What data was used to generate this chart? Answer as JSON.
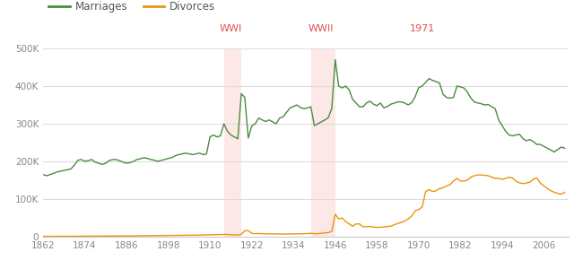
{
  "marriage_data": {
    "years": [
      1862,
      1863,
      1864,
      1865,
      1866,
      1867,
      1868,
      1869,
      1870,
      1871,
      1872,
      1873,
      1874,
      1875,
      1876,
      1877,
      1878,
      1879,
      1880,
      1881,
      1882,
      1883,
      1884,
      1885,
      1886,
      1887,
      1888,
      1889,
      1890,
      1891,
      1892,
      1893,
      1894,
      1895,
      1896,
      1897,
      1898,
      1899,
      1900,
      1901,
      1902,
      1903,
      1904,
      1905,
      1906,
      1907,
      1908,
      1909,
      1910,
      1911,
      1912,
      1913,
      1914,
      1915,
      1916,
      1917,
      1918,
      1919,
      1920,
      1921,
      1922,
      1923,
      1924,
      1925,
      1926,
      1927,
      1928,
      1929,
      1930,
      1931,
      1932,
      1933,
      1934,
      1935,
      1936,
      1937,
      1938,
      1939,
      1940,
      1941,
      1942,
      1943,
      1944,
      1945,
      1946,
      1947,
      1948,
      1949,
      1950,
      1951,
      1952,
      1953,
      1954,
      1955,
      1956,
      1957,
      1958,
      1959,
      1960,
      1961,
      1962,
      1963,
      1964,
      1965,
      1966,
      1967,
      1968,
      1969,
      1970,
      1971,
      1972,
      1973,
      1974,
      1975,
      1976,
      1977,
      1978,
      1979,
      1980,
      1981,
      1982,
      1983,
      1984,
      1985,
      1986,
      1987,
      1988,
      1989,
      1990,
      1991,
      1992,
      1993,
      1994,
      1995,
      1996,
      1997,
      1998,
      1999,
      2000,
      2001,
      2002,
      2003,
      2004,
      2005,
      2006,
      2007,
      2008,
      2009,
      2010,
      2011,
      2012
    ],
    "values": [
      165000,
      162000,
      165000,
      168000,
      172000,
      174000,
      176000,
      178000,
      180000,
      190000,
      203000,
      205000,
      200000,
      202000,
      205000,
      198000,
      195000,
      192000,
      195000,
      202000,
      205000,
      205000,
      202000,
      198000,
      195000,
      197000,
      200000,
      205000,
      207000,
      210000,
      208000,
      205000,
      203000,
      200000,
      203000,
      205000,
      208000,
      210000,
      215000,
      218000,
      220000,
      222000,
      220000,
      218000,
      220000,
      222000,
      218000,
      220000,
      265000,
      270000,
      265000,
      268000,
      300000,
      280000,
      270000,
      265000,
      260000,
      380000,
      370000,
      262000,
      294000,
      300000,
      315000,
      310000,
      306000,
      310000,
      305000,
      300000,
      315000,
      318000,
      330000,
      342000,
      346000,
      350000,
      343000,
      340000,
      342000,
      345000,
      295000,
      300000,
      305000,
      310000,
      316000,
      340000,
      470000,
      400000,
      395000,
      400000,
      390000,
      365000,
      355000,
      345000,
      345000,
      355000,
      360000,
      352000,
      348000,
      355000,
      342000,
      346000,
      352000,
      355000,
      358000,
      358000,
      355000,
      350000,
      356000,
      372000,
      396000,
      400000,
      410000,
      420000,
      415000,
      412000,
      408000,
      378000,
      370000,
      368000,
      370000,
      400000,
      398000,
      395000,
      384000,
      368000,
      358000,
      355000,
      353000,
      350000,
      351000,
      345000,
      340000,
      310000,
      295000,
      280000,
      270000,
      268000,
      270000,
      272000,
      260000,
      255000,
      258000,
      252000,
      245000,
      245000,
      240000,
      235000,
      230000,
      225000,
      232000,
      238000,
      235000
    ]
  },
  "divorce_data": {
    "years": [
      1862,
      1863,
      1864,
      1865,
      1866,
      1867,
      1868,
      1869,
      1870,
      1871,
      1872,
      1873,
      1874,
      1875,
      1876,
      1877,
      1878,
      1879,
      1880,
      1881,
      1882,
      1883,
      1884,
      1885,
      1886,
      1887,
      1888,
      1889,
      1890,
      1891,
      1892,
      1893,
      1894,
      1895,
      1896,
      1897,
      1898,
      1899,
      1900,
      1901,
      1902,
      1903,
      1904,
      1905,
      1906,
      1907,
      1908,
      1909,
      1910,
      1911,
      1912,
      1913,
      1914,
      1915,
      1916,
      1917,
      1918,
      1919,
      1920,
      1921,
      1922,
      1923,
      1924,
      1925,
      1926,
      1927,
      1928,
      1929,
      1930,
      1931,
      1932,
      1933,
      1934,
      1935,
      1936,
      1937,
      1938,
      1939,
      1940,
      1941,
      1942,
      1943,
      1944,
      1945,
      1946,
      1947,
      1948,
      1949,
      1950,
      1951,
      1952,
      1953,
      1954,
      1955,
      1956,
      1957,
      1958,
      1959,
      1960,
      1961,
      1962,
      1963,
      1964,
      1965,
      1966,
      1967,
      1968,
      1969,
      1970,
      1971,
      1972,
      1973,
      1974,
      1975,
      1976,
      1977,
      1978,
      1979,
      1980,
      1981,
      1982,
      1983,
      1984,
      1985,
      1986,
      1987,
      1988,
      1989,
      1990,
      1991,
      1992,
      1993,
      1994,
      1995,
      1996,
      1997,
      1998,
      1999,
      2000,
      2001,
      2002,
      2003,
      2004,
      2005,
      2006,
      2007,
      2008,
      2009,
      2010,
      2011,
      2012
    ],
    "values": [
      1000,
      1000,
      1000,
      1000,
      1000,
      1000,
      1000,
      1200,
      1200,
      1200,
      1400,
      1400,
      1400,
      1500,
      1500,
      1600,
      1600,
      1700,
      1800,
      1800,
      1900,
      1900,
      2000,
      2000,
      2100,
      2100,
      2200,
      2300,
      2400,
      2500,
      2600,
      2700,
      2800,
      2900,
      3000,
      3100,
      3200,
      3300,
      3500,
      3600,
      3700,
      3800,
      3900,
      4000,
      4200,
      4400,
      4500,
      4700,
      5000,
      5200,
      5400,
      5700,
      6000,
      6200,
      5000,
      4800,
      4500,
      6500,
      16000,
      16000,
      9000,
      8000,
      8500,
      8000,
      7800,
      7500,
      7400,
      7200,
      7000,
      7000,
      7200,
      7200,
      7400,
      7500,
      7800,
      8000,
      8500,
      9000,
      8000,
      8000,
      9000,
      10000,
      11000,
      14000,
      60000,
      47000,
      50000,
      40000,
      34000,
      28000,
      34000,
      34000,
      26000,
      27000,
      27000,
      26000,
      25000,
      25000,
      26000,
      27000,
      28000,
      32000,
      35000,
      38000,
      42000,
      47000,
      55000,
      69000,
      72000,
      79000,
      120000,
      125000,
      120000,
      122000,
      128000,
      130000,
      135000,
      138000,
      148000,
      155000,
      148000,
      148000,
      150000,
      158000,
      162000,
      164000,
      164000,
      163000,
      162000,
      158000,
      155000,
      155000,
      152000,
      155000,
      158000,
      156000,
      147000,
      143000,
      141000,
      143000,
      145000,
      153000,
      156000,
      142000,
      135000,
      128000,
      122000,
      118000,
      115000,
      113000,
      118000
    ]
  },
  "marriage_color": "#4a8c3f",
  "divorce_color": "#e8950a",
  "wwi_start": 1914,
  "wwi_end": 1919,
  "wwii_start": 1939,
  "wwii_end": 1946,
  "highlight_color": "#fde8e8",
  "annotation_color": "#e05050",
  "annotations": [
    {
      "label": "WWI",
      "x": 1916
    },
    {
      "label": "WWII",
      "x": 1942
    },
    {
      "label": "1971",
      "x": 1971
    }
  ],
  "xlim": [
    1862,
    2013
  ],
  "ylim": [
    0,
    500000
  ],
  "yticks": [
    0,
    100000,
    200000,
    300000,
    400000,
    500000
  ],
  "ytick_labels": [
    "0",
    "100K",
    "200K",
    "300K",
    "400K",
    "500K"
  ],
  "xticks": [
    1862,
    1874,
    1886,
    1898,
    1910,
    1922,
    1934,
    1946,
    1958,
    1970,
    1982,
    1994,
    2006
  ],
  "background_color": "#ffffff",
  "grid_color": "#dddddd",
  "legend_marriage": "Marriages",
  "legend_divorce": "Divorces"
}
